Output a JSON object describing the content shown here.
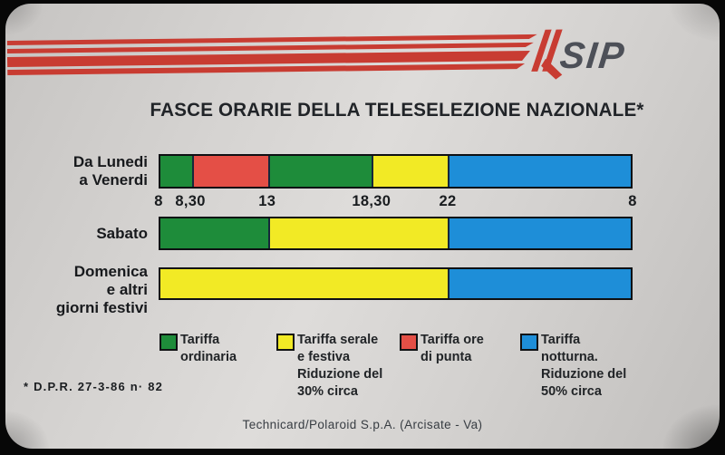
{
  "brand": "SIP",
  "title": "FASCE ORARIE DELLA TELESELEZIONE NAZIONALE*",
  "footnote": "* D.P.R. 27-3-86 n· 82",
  "credit": "Technicard/Polaroid S.p.A. (Arcisate - Va)",
  "colors": {
    "green": "#1e8c3a",
    "yellow": "#f2ea25",
    "red": "#e44f46",
    "blue": "#1e8ed8",
    "stripe_red": "#c83c32",
    "sip_gray": "#4d5058"
  },
  "chart_data": {
    "type": "bar",
    "variant": "horizontal-stacked-timebands",
    "title": "FASCE ORARIE DELLA TELESELEZIONE NAZIONALE*",
    "x_ticks": [
      {
        "label": "8",
        "pct": 0
      },
      {
        "label": "8,30",
        "pct": 6.7
      },
      {
        "label": "13",
        "pct": 22.9
      },
      {
        "label": "18,30",
        "pct": 44.9
      },
      {
        "label": "22",
        "pct": 61.0
      },
      {
        "label": "8",
        "pct": 100
      }
    ],
    "rows": [
      {
        "label_lines": [
          "Da Lunedi",
          "a Venerdi"
        ],
        "segments": [
          {
            "tariff": "Tariffa ordinaria",
            "color_key": "green",
            "from": "8",
            "to": "8,30",
            "start_pct": 0,
            "end_pct": 6.7
          },
          {
            "tariff": "Tariffa ore di punta",
            "color_key": "red",
            "from": "8,30",
            "to": "13",
            "start_pct": 6.7,
            "end_pct": 22.9
          },
          {
            "tariff": "Tariffa ordinaria",
            "color_key": "green",
            "from": "13",
            "to": "18,30",
            "start_pct": 22.9,
            "end_pct": 44.9
          },
          {
            "tariff": "Tariffa serale e festiva",
            "color_key": "yellow",
            "from": "18,30",
            "to": "22",
            "start_pct": 44.9,
            "end_pct": 61.0
          },
          {
            "tariff": "Tariffa notturna",
            "color_key": "blue",
            "from": "22",
            "to": "8",
            "start_pct": 61.0,
            "end_pct": 100
          }
        ]
      },
      {
        "label_lines": [
          "Sabato"
        ],
        "segments": [
          {
            "tariff": "Tariffa ordinaria",
            "color_key": "green",
            "from": "8",
            "to": "13",
            "start_pct": 0,
            "end_pct": 22.9
          },
          {
            "tariff": "Tariffa serale e festiva",
            "color_key": "yellow",
            "from": "13",
            "to": "22",
            "start_pct": 22.9,
            "end_pct": 61.0
          },
          {
            "tariff": "Tariffa notturna",
            "color_key": "blue",
            "from": "22",
            "to": "8",
            "start_pct": 61.0,
            "end_pct": 100
          }
        ]
      },
      {
        "label_lines": [
          "Domenica",
          "e altri",
          "giorni festivi"
        ],
        "segments": [
          {
            "tariff": "Tariffa serale e festiva",
            "color_key": "yellow",
            "from": "8",
            "to": "22",
            "start_pct": 0,
            "end_pct": 61.0
          },
          {
            "tariff": "Tariffa notturna",
            "color_key": "blue",
            "from": "22",
            "to": "8",
            "start_pct": 61.0,
            "end_pct": 100
          }
        ]
      }
    ],
    "legend": [
      {
        "color_key": "green",
        "lines": [
          "Tariffa",
          "ordinaria"
        ]
      },
      {
        "color_key": "yellow",
        "lines": [
          "Tariffa serale",
          "e festiva",
          "Riduzione del",
          "30% circa"
        ]
      },
      {
        "color_key": "red",
        "lines": [
          "Tariffa ore",
          "di punta"
        ]
      },
      {
        "color_key": "blue",
        "lines": [
          "Tariffa",
          "notturna.",
          "Riduzione del",
          "50% circa"
        ]
      }
    ]
  }
}
